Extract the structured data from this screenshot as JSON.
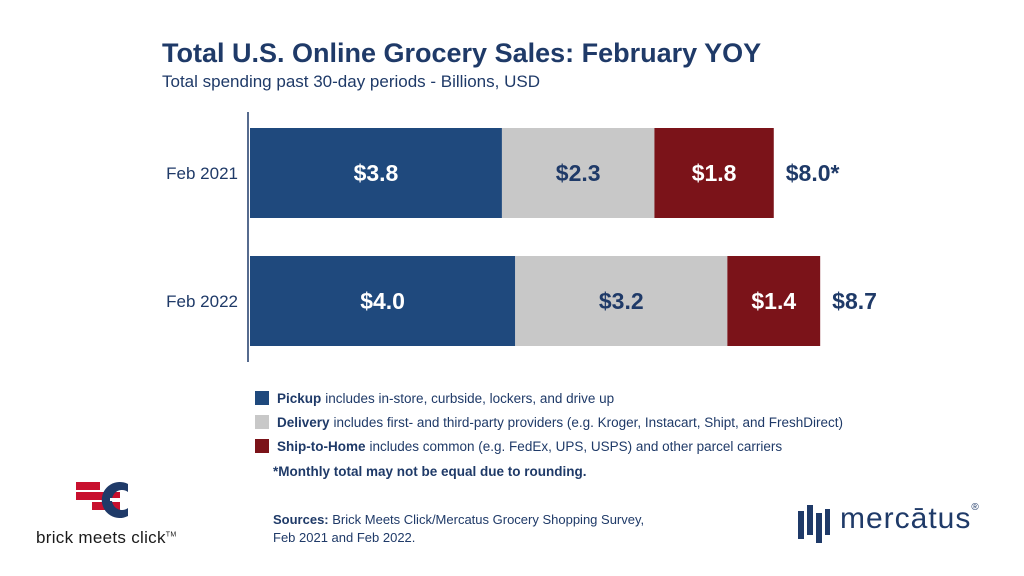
{
  "chart_data": {
    "type": "bar",
    "orientation": "horizontal",
    "stacked": true,
    "title": "Total U.S. Online Grocery Sales: February YOY",
    "subtitle": "Total spending past 30-day periods - Billions, USD",
    "categories": [
      "Feb 2021",
      "Feb 2022"
    ],
    "series": [
      {
        "name": "Pickup",
        "values": [
          3.8,
          4.0
        ],
        "labels": [
          "$3.8",
          "$4.0"
        ],
        "color": "#1f497d",
        "label_color": "#ffffff"
      },
      {
        "name": "Delivery",
        "values": [
          2.3,
          3.2
        ],
        "labels": [
          "$2.3",
          "$3.2"
        ],
        "color": "#c8c8c8",
        "label_color": "#1f3a68"
      },
      {
        "name": "Ship-to-Home",
        "values": [
          1.8,
          1.4
        ],
        "labels": [
          "$1.8",
          "$1.4"
        ],
        "color": "#7b1319",
        "label_color": "#ffffff"
      }
    ],
    "totals": [
      "$8.0*",
      "$8.7"
    ],
    "legend_position": "bottom",
    "grid": false
  },
  "legend": [
    {
      "bold": "Pickup",
      "text": "includes in-store, curbside, lockers, and drive up",
      "color": "#1f497d"
    },
    {
      "bold": "Delivery",
      "text": "includes first- and third-party providers (e.g. Kroger, Instacart, Shipt, and FreshDirect)",
      "color": "#c8c8c8"
    },
    {
      "bold": "Ship-to-Home",
      "text": "includes common (e.g. FedEx, UPS, USPS) and other parcel carriers",
      "color": "#7b1319"
    }
  ],
  "note": "*Monthly total may not be equal due to rounding.",
  "sources": {
    "label": "Sources:",
    "line1": "Brick Meets Click/Mercatus Grocery Shopping Survey,",
    "line2": "Feb 2021 and Feb 2022."
  },
  "logos": {
    "left_text": "brick meets click",
    "left_tm": "TM",
    "right_text": "mercātus",
    "right_reg": "®"
  }
}
